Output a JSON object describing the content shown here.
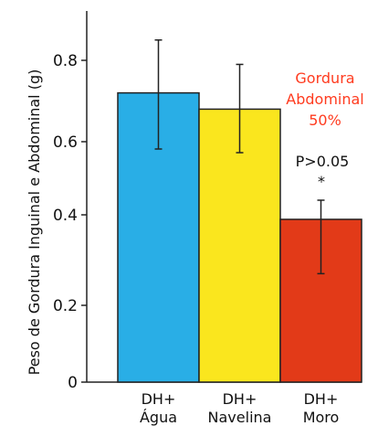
{
  "chart_data": {
    "type": "bar",
    "title": "",
    "xlabel": "",
    "ylabel": "Peso de Gordura Inguinal e Abdominal (g)",
    "ylim": [
      0,
      0.9
    ],
    "yticks": [
      {
        "value": 0,
        "label": "0"
      },
      {
        "value": 0.2,
        "label": "0.2"
      },
      {
        "value": 0.4,
        "label": "0.4"
      },
      {
        "value": 0.6,
        "label": "0.6"
      },
      {
        "value": 0.8,
        "label": "0.8"
      }
    ],
    "categories": [
      {
        "line1": "DH+",
        "line2": "Água"
      },
      {
        "line1": "DH+",
        "line2": "Navelina"
      },
      {
        "line1": "DH+",
        "line2": "Moro"
      }
    ],
    "values": [
      0.72,
      0.68,
      0.39
    ],
    "error_bars": [
      {
        "low": 0.58,
        "high": 0.85
      },
      {
        "low": 0.57,
        "high": 0.79
      },
      {
        "low": 0.27,
        "high": 0.44
      }
    ],
    "colors": [
      "#29aee6",
      "#fae61e",
      "#e23a18"
    ],
    "grid": false,
    "annotations": {
      "gordura": [
        "Gordura",
        "Abdominal",
        "50%"
      ],
      "gordura_color": "#ff3b1f",
      "pvalue": "P>0.05",
      "star": "*"
    }
  }
}
